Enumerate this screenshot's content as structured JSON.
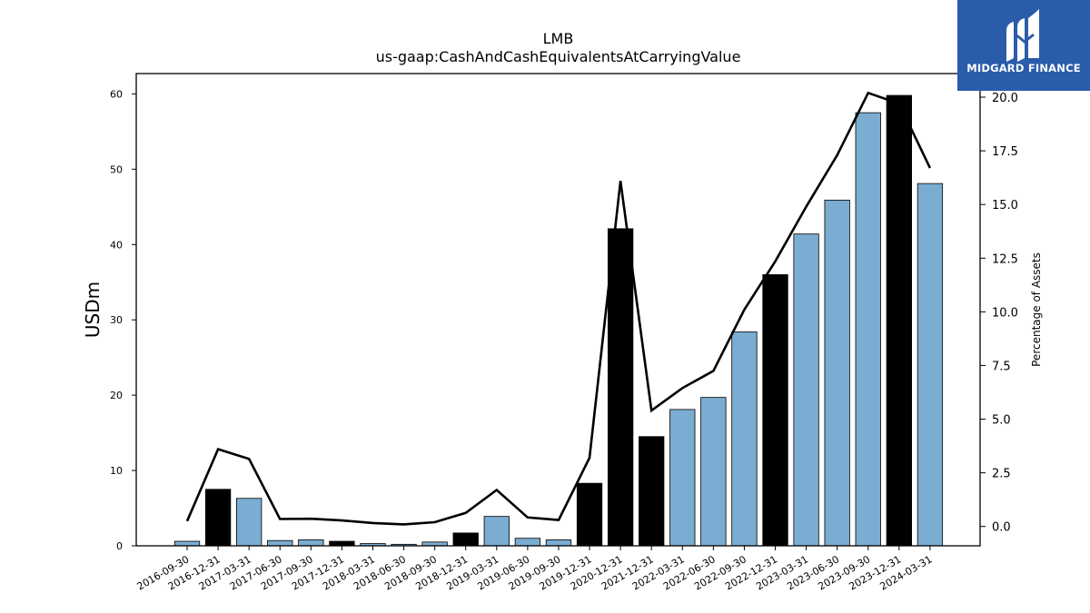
{
  "brand": {
    "name": "MIDGARD FINANCE",
    "icon": "midgard-logo-icon",
    "colors": {
      "background": "#2a5caa",
      "foreground": "#ffffff"
    }
  },
  "chart_data": {
    "type": "bar",
    "title": "LMB",
    "subtitle": "us-gaap:CashAndCashEquivalentsAtCarryingValue",
    "ylabel": "USDm",
    "ylabel_right": "Percentage of Assets",
    "ylim": [
      0,
      62.7
    ],
    "ylim_right": [
      -0.9,
      21.1
    ],
    "yticks": [
      0,
      10,
      20,
      30,
      40,
      50,
      60
    ],
    "yticks_right": [
      0.0,
      2.5,
      5.0,
      7.5,
      10.0,
      12.5,
      15.0,
      17.5,
      20.0
    ],
    "yticks_right_labels": [
      "0.0",
      "2.5",
      "5.0",
      "7.5",
      "10.0",
      "12.5",
      "15.0",
      "17.5",
      "20.0"
    ],
    "grid": false,
    "categories": [
      "2016-09-30",
      "2016-12-31",
      "2017-03-31",
      "2017-06-30",
      "2017-09-30",
      "2017-12-31",
      "2018-03-31",
      "2018-06-30",
      "2018-09-30",
      "2018-12-31",
      "2019-03-31",
      "2019-06-30",
      "2019-09-30",
      "2019-12-31",
      "2020-12-31",
      "2021-12-31",
      "2022-03-31",
      "2022-06-30",
      "2022-09-30",
      "2022-12-31",
      "2023-03-31",
      "2023-06-30",
      "2023-09-30",
      "2023-12-31",
      "2024-03-31"
    ],
    "series": [
      {
        "type": "bar",
        "values": [
          0.6,
          7.5,
          6.3,
          0.7,
          0.8,
          0.6,
          0.3,
          0.2,
          0.5,
          1.7,
          3.9,
          1.0,
          0.8,
          8.3,
          42.1,
          14.5,
          18.1,
          19.7,
          28.4,
          36.0,
          41.4,
          45.9,
          57.5,
          59.8,
          48.1
        ],
        "colors": [
          "#7bacd1",
          "#000000",
          "#7bacd1",
          "#7bacd1",
          "#7bacd1",
          "#000000",
          "#7bacd1",
          "#7bacd1",
          "#7bacd1",
          "#000000",
          "#7bacd1",
          "#7bacd1",
          "#7bacd1",
          "#000000",
          "#000000",
          "#000000",
          "#7bacd1",
          "#7bacd1",
          "#7bacd1",
          "#000000",
          "#7bacd1",
          "#7bacd1",
          "#7bacd1",
          "#000000",
          "#7bacd1"
        ]
      },
      {
        "type": "line",
        "axis": "right",
        "color": "#000000",
        "values": [
          0.25,
          3.6,
          3.15,
          0.35,
          0.36,
          0.28,
          0.16,
          0.1,
          0.2,
          0.63,
          1.7,
          0.42,
          0.3,
          3.2,
          16.1,
          5.4,
          6.45,
          7.25,
          10.1,
          12.35,
          14.9,
          17.3,
          20.2,
          19.7,
          16.7
        ]
      }
    ]
  }
}
